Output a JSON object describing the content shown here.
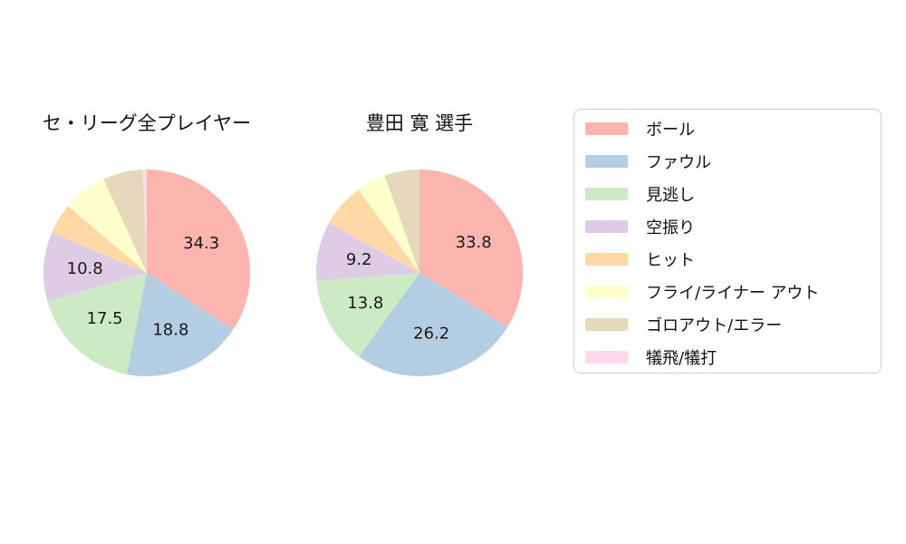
{
  "chart_data": {
    "type": "pie",
    "background": "#ffffff",
    "text_color": "#1a1a1a",
    "legend_position": "right",
    "legend_border_color": "#cccccc",
    "start_angle": "12-oclock",
    "direction": "clockwise",
    "label_threshold": 8,
    "legend": [
      {
        "label": "ボール",
        "color": "#fbb4ae"
      },
      {
        "label": "ファウル",
        "color": "#b3cde3"
      },
      {
        "label": "見逃し",
        "color": "#ccebc5"
      },
      {
        "label": "空振り",
        "color": "#decbe4"
      },
      {
        "label": "ヒット",
        "color": "#fed9a6"
      },
      {
        "label": "フライ/ライナー アウト",
        "color": "#ffffcc"
      },
      {
        "label": "ゴロアウト/エラー",
        "color": "#e5d8bd"
      },
      {
        "label": "犠飛/犠打",
        "color": "#fddaec"
      }
    ],
    "charts": [
      {
        "title": "セ・リーグ全プレイヤー",
        "categories": [
          "ボール",
          "ファウル",
          "見逃し",
          "空振り",
          "ヒット",
          "フライ/ライナー アウト",
          "ゴロアウト/エラー",
          "犠飛/犠打"
        ],
        "values": [
          34.3,
          18.8,
          17.5,
          10.8,
          4.8,
          6.9,
          6.3,
          0.6
        ],
        "visible_value_labels": [
          "34.3",
          "18.8",
          "17.5",
          "10.8"
        ]
      },
      {
        "title": "豊田 寛 選手",
        "categories": [
          "ボール",
          "ファウル",
          "見逃し",
          "空振り",
          "ヒット",
          "フライ/ライナー アウト",
          "ゴロアウト/エラー",
          "犠飛/犠打"
        ],
        "values": [
          33.8,
          26.2,
          13.8,
          9.2,
          6.9,
          4.6,
          5.5,
          0
        ],
        "visible_value_labels": [
          "33.8",
          "26.2",
          "13.8",
          "9.2"
        ]
      }
    ]
  }
}
